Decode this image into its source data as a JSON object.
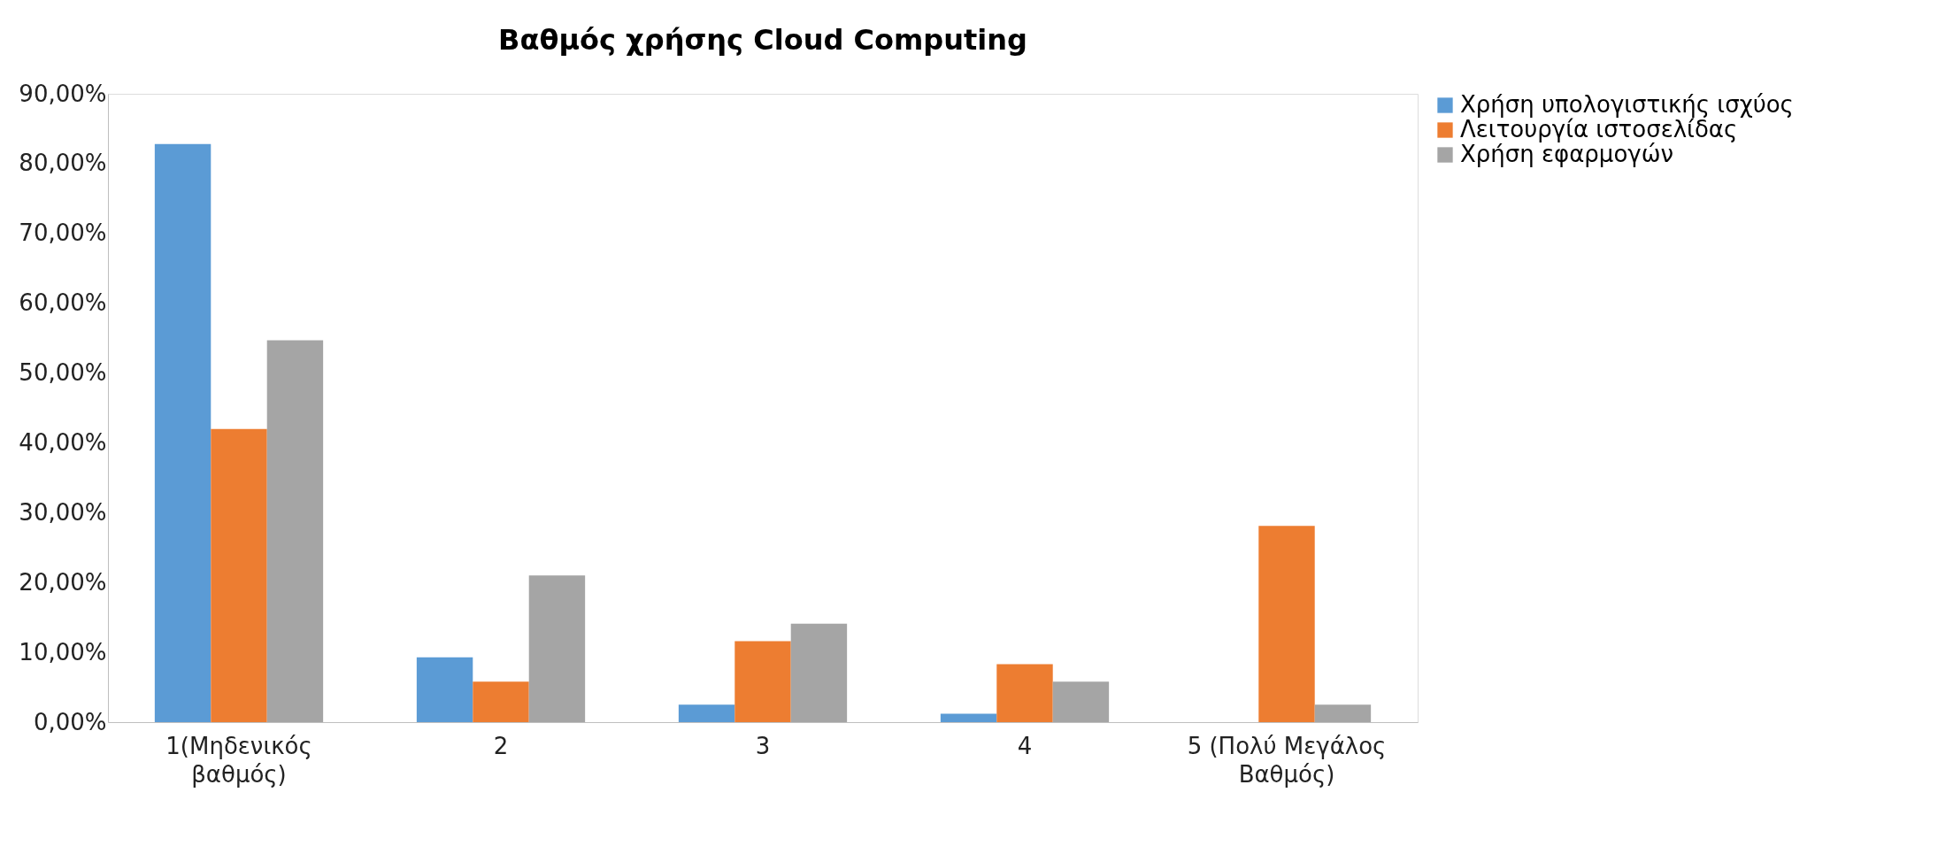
{
  "chart_data": {
    "type": "bar",
    "title": "Βαθμός χρήσης Cloud Computing",
    "categories": [
      "1(Μηδενικός βαθμός)",
      "2",
      "3",
      "4",
      "5 (Πολύ Μεγάλος Βαθμός)"
    ],
    "series": [
      {
        "name": "Χρήση υπολογιστικής ισχύος",
        "color": "#5b9bd5",
        "values": [
          82.8,
          9.3,
          2.5,
          1.2,
          0
        ]
      },
      {
        "name": "Λειτουργία ιστοσελίδας",
        "color": "#ed7d31",
        "values": [
          42.0,
          5.8,
          11.6,
          8.3,
          28.1
        ]
      },
      {
        "name": "Χρήση εφαρμογών",
        "color": "#a5a5a5",
        "values": [
          54.7,
          21.0,
          14.1,
          5.8,
          2.5
        ]
      }
    ],
    "ylim": [
      0,
      90
    ],
    "yticks": [
      {
        "value": 0,
        "label": "0,00%"
      },
      {
        "value": 10,
        "label": "10,00%"
      },
      {
        "value": 20,
        "label": "20,00%"
      },
      {
        "value": 30,
        "label": "30,00%"
      },
      {
        "value": 40,
        "label": "40,00%"
      },
      {
        "value": 50,
        "label": "50,00%"
      },
      {
        "value": 60,
        "label": "60,00%"
      },
      {
        "value": 70,
        "label": "70,00%"
      },
      {
        "value": 80,
        "label": "80,00%"
      },
      {
        "value": 90,
        "label": "90,00%"
      }
    ],
    "grid": false,
    "legend": "right"
  }
}
